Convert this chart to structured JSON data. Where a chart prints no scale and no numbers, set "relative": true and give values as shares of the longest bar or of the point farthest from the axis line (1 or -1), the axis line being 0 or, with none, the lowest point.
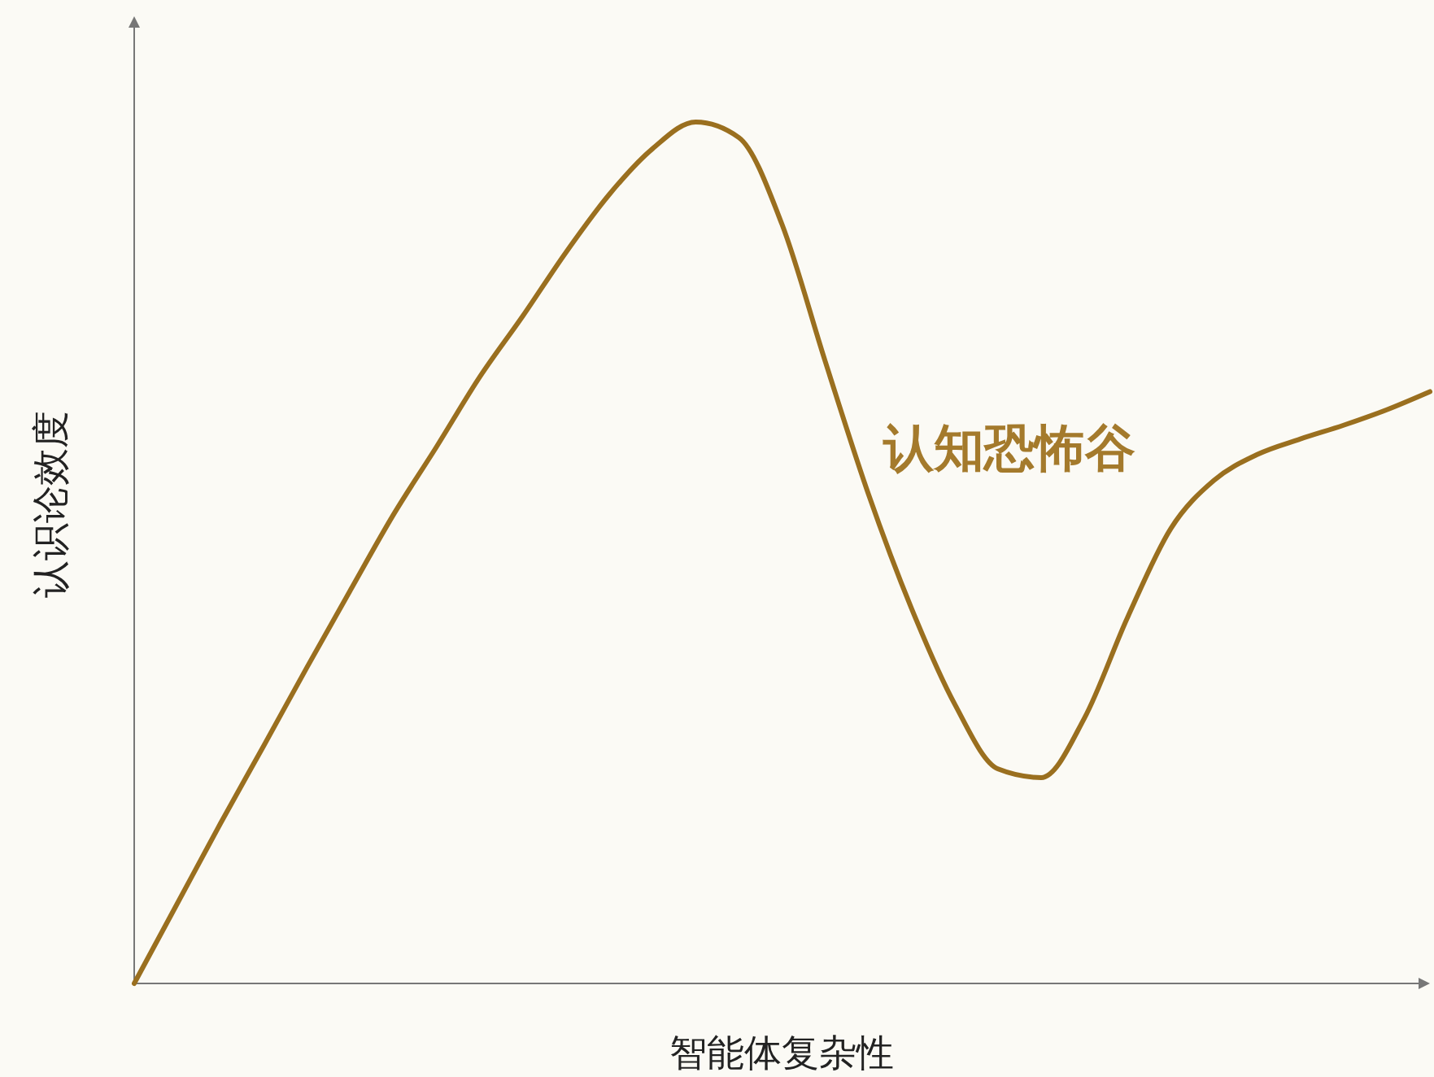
{
  "chart_data": {
    "type": "line",
    "relative": true,
    "xlabel": "智能体复杂性",
    "ylabel": "认识论效度",
    "annotations": [
      "认知恐怖谷"
    ],
    "marker": "none",
    "line_style": "solid",
    "categories": [
      null,
      null,
      null,
      null,
      null,
      null,
      null,
      null,
      null,
      null,
      null,
      null,
      null,
      null,
      null,
      null,
      null,
      null,
      null,
      null,
      null,
      null,
      null,
      null,
      null,
      null,
      null,
      null,
      null,
      null,
      null
    ],
    "series": [
      {
        "color": "#9a6f1f",
        "values": [
          0,
          0.093,
          0.186,
          0.276,
          0.367,
          0.456,
          0.544,
          0.623,
          0.704,
          0.775,
          0.849,
          0.916,
          0.969,
          1,
          0.982,
          0.881,
          0.722,
          0.568,
          0.435,
          0.324,
          0.249,
          0.239,
          0.308,
          0.425,
          0.528,
          0.584,
          0.614,
          0.632,
          0.648,
          0.666,
          0.687
        ]
      }
    ]
  }
}
